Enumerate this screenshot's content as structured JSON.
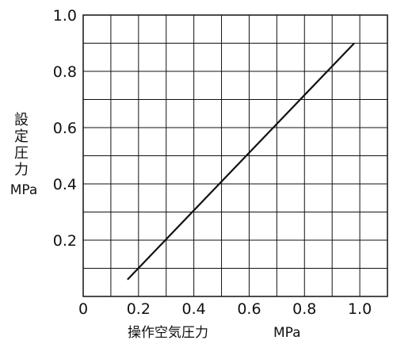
{
  "chart_data": {
    "type": "line",
    "xlabel": "操作空気圧力",
    "xlabel_unit": "MPa",
    "ylabel_chars": [
      "設",
      "定",
      "圧",
      "力"
    ],
    "ylabel_unit": "MPa",
    "xlim": [
      0,
      1.1
    ],
    "ylim": [
      0,
      1.0
    ],
    "x_grid_step": 0.1,
    "y_grid_step": 0.1,
    "x_ticks": [
      {
        "value": 0,
        "label": "0"
      },
      {
        "value": 0.2,
        "label": "0.2"
      },
      {
        "value": 0.4,
        "label": "0.4"
      },
      {
        "value": 0.6,
        "label": "0.6"
      },
      {
        "value": 0.8,
        "label": "0.8"
      },
      {
        "value": 1.0,
        "label": "1.0"
      }
    ],
    "y_ticks": [
      {
        "value": 0.2,
        "label": "0.2"
      },
      {
        "value": 0.4,
        "label": "0.4"
      },
      {
        "value": 0.6,
        "label": "0.6"
      },
      {
        "value": 0.8,
        "label": "0.8"
      },
      {
        "value": 1.0,
        "label": "1.0"
      }
    ],
    "grid": true,
    "series": [
      {
        "x": [
          0.16,
          0.98
        ],
        "y": [
          0.06,
          0.9
        ],
        "color": "#111111"
      }
    ]
  }
}
